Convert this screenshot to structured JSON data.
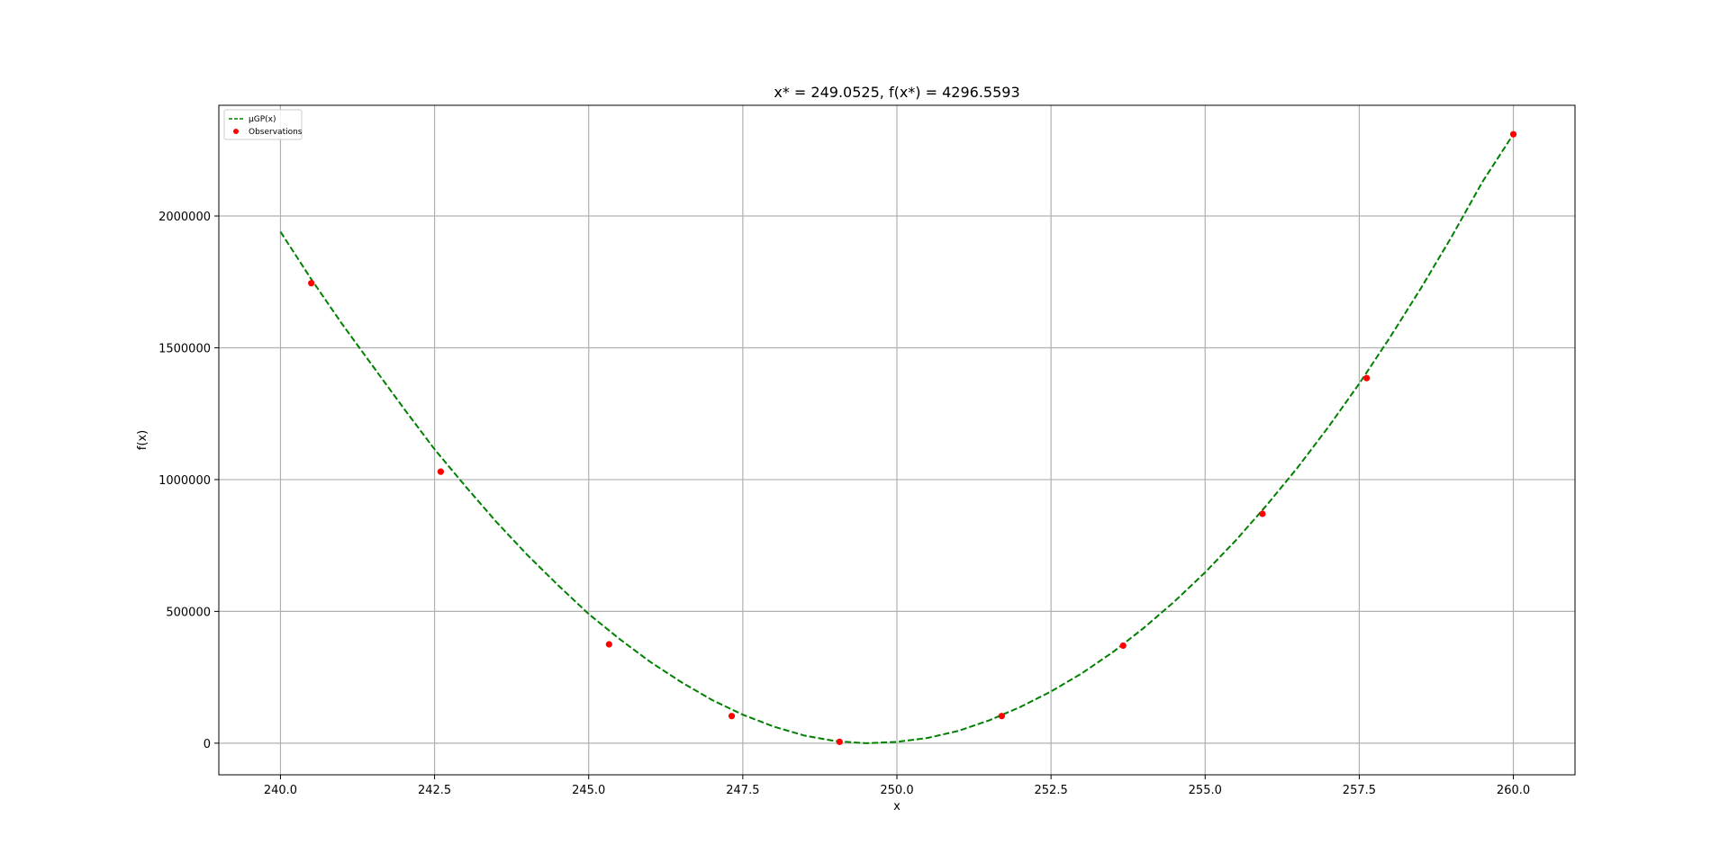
{
  "chart_data": {
    "type": "line",
    "title": "x* = 249.0525, f(x*) = 4296.5593",
    "xlabel": "x",
    "ylabel": "f(x)",
    "xlim": [
      239.0,
      261.0
    ],
    "ylim": [
      -120000,
      2420000
    ],
    "xticks": [
      240.0,
      242.5,
      245.0,
      247.5,
      250.0,
      252.5,
      255.0,
      257.5,
      260.0
    ],
    "xtick_labels": [
      "240.0",
      "242.5",
      "245.0",
      "247.5",
      "250.0",
      "252.5",
      "255.0",
      "257.5",
      "260.0"
    ],
    "yticks": [
      0,
      500000,
      1000000,
      1500000,
      2000000
    ],
    "ytick_labels": [
      "0",
      "500000",
      "1000000",
      "1500000",
      "2000000"
    ],
    "grid": true,
    "legend": {
      "placement": "top-left",
      "entries": [
        {
          "label": "μGP(x)",
          "kind": "dashed-line",
          "color": "#008000"
        },
        {
          "label": "Observations",
          "kind": "marker",
          "color": "#ff0000"
        }
      ]
    },
    "series": [
      {
        "name": "μGP(x)",
        "kind": "dashed-line",
        "color": "#008000",
        "x": [
          240.0,
          240.5,
          241.0,
          241.5,
          242.0,
          242.5,
          243.0,
          243.5,
          244.0,
          244.5,
          245.0,
          245.5,
          246.0,
          246.5,
          247.0,
          247.5,
          248.0,
          248.5,
          249.0,
          249.5,
          250.0,
          250.5,
          251.0,
          251.5,
          252.0,
          252.5,
          253.0,
          253.5,
          254.0,
          254.5,
          255.0,
          255.5,
          256.0,
          256.5,
          257.0,
          257.5,
          258.0,
          258.5,
          259.0,
          259.5,
          260.0
        ],
        "y": [
          1940000,
          1760000,
          1590000,
          1430000,
          1270000,
          1115000,
          975000,
          840000,
          715000,
          600000,
          490000,
          395000,
          308000,
          232000,
          164000,
          108000,
          63000,
          29000,
          8000,
          0,
          5000,
          20000,
          47000,
          87000,
          137000,
          196000,
          265000,
          345000,
          436000,
          537000,
          648000,
          770000,
          903000,
          1046000,
          1200000,
          1364000,
          1540000,
          1726000,
          1922000,
          2130000,
          2310000
        ]
      },
      {
        "name": "Observations",
        "kind": "scatter",
        "color": "#ff0000",
        "x": [
          240.5,
          242.6,
          245.33,
          247.32,
          249.07,
          251.7,
          253.67,
          255.93,
          257.62,
          260.0
        ],
        "y": [
          1745000,
          1030000,
          375000,
          103000,
          5000,
          103000,
          370000,
          870000,
          1385000,
          2310000
        ]
      }
    ]
  }
}
